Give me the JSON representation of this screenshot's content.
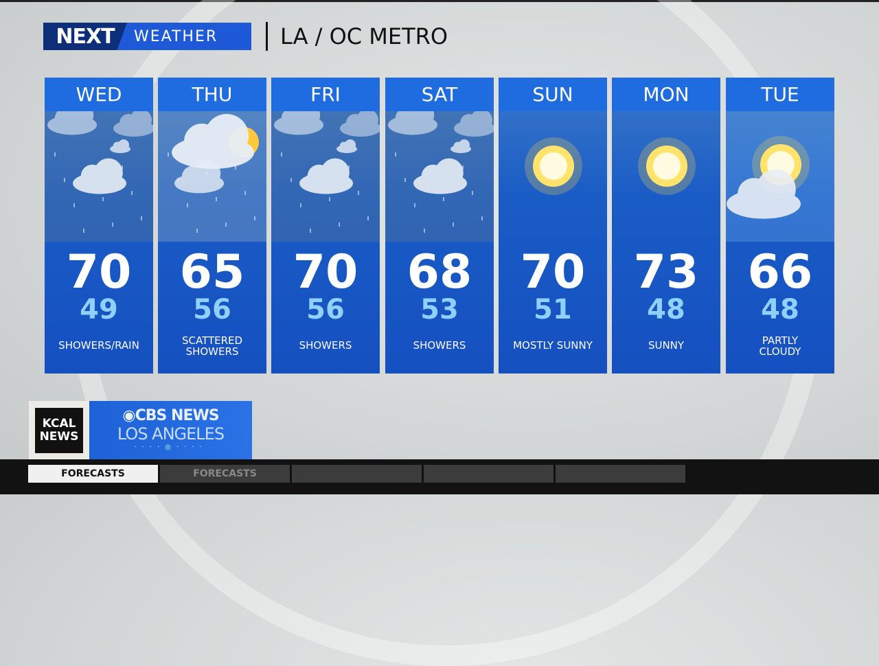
{
  "header": {
    "brand_next": "NEXT",
    "brand_weather": "WEATHER",
    "region": "LA / OC METRO"
  },
  "forecast": [
    {
      "day": "WED",
      "high": "70",
      "low": "49",
      "condition": "SHOWERS/RAIN",
      "icon": "cloud-rain-icon"
    },
    {
      "day": "THU",
      "high": "65",
      "low": "56",
      "condition": "SCATTERED SHOWERS",
      "icon": "cloud-sun-rain-icon"
    },
    {
      "day": "FRI",
      "high": "70",
      "low": "56",
      "condition": "SHOWERS",
      "icon": "cloud-rain-icon"
    },
    {
      "day": "SAT",
      "high": "68",
      "low": "53",
      "condition": "SHOWERS",
      "icon": "cloud-rain-icon"
    },
    {
      "day": "SUN",
      "high": "70",
      "low": "51",
      "condition": "MOSTLY SUNNY",
      "icon": "sun-icon"
    },
    {
      "day": "MON",
      "high": "73",
      "low": "48",
      "condition": "SUNNY",
      "icon": "sun-icon"
    },
    {
      "day": "TUE",
      "high": "66",
      "low": "48",
      "condition": "PARTLY CLOUDY",
      "icon": "partly-cloudy-icon"
    }
  ],
  "station": {
    "kcal": "KCAL NEWS",
    "cbs": "CBS NEWS",
    "city": "LOS ANGELES"
  },
  "ticker": {
    "tabs": [
      "FORECASTS",
      "FORECASTS",
      "",
      "",
      ""
    ]
  },
  "colors": {
    "card_header": "#1f6be0",
    "card_body": "#1a5cc6",
    "low_temp": "#8fd0ff",
    "brand": "#1e5ad8"
  }
}
